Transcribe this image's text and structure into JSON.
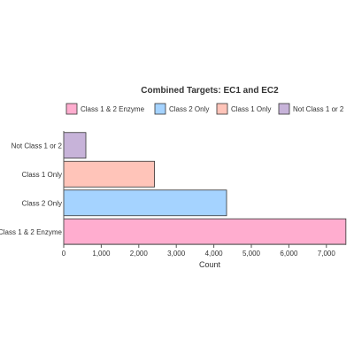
{
  "chart_data": {
    "type": "bar",
    "orientation": "horizontal",
    "title": "Combined Targets: EC1 and EC2",
    "xlabel": "Count",
    "ylabel": "",
    "categories": [
      "Class 1 & 2 Enzyme",
      "Class 2 Only",
      "Class 1 Only",
      "Not Class 1 or 2"
    ],
    "values": [
      7520,
      4340,
      2420,
      590
    ],
    "colors": [
      "#ffadcf",
      "#a5d3ff",
      "#ffc4b9",
      "#c7b3d9"
    ],
    "xlim": [
      0,
      7500
    ],
    "xticks": [
      0,
      1000,
      2000,
      3000,
      4000,
      5000,
      6000,
      7000
    ],
    "xtick_labels": [
      "0",
      "1,000",
      "2,000",
      "3,000",
      "4,000",
      "5,000",
      "6,000",
      "7,000"
    ],
    "legend": {
      "placement": "top",
      "entries": [
        "Class 1 & 2 Enzyme",
        "Class 2 Only",
        "Class 1 Only",
        "Not Class 1 or 2"
      ]
    },
    "grid": false
  }
}
